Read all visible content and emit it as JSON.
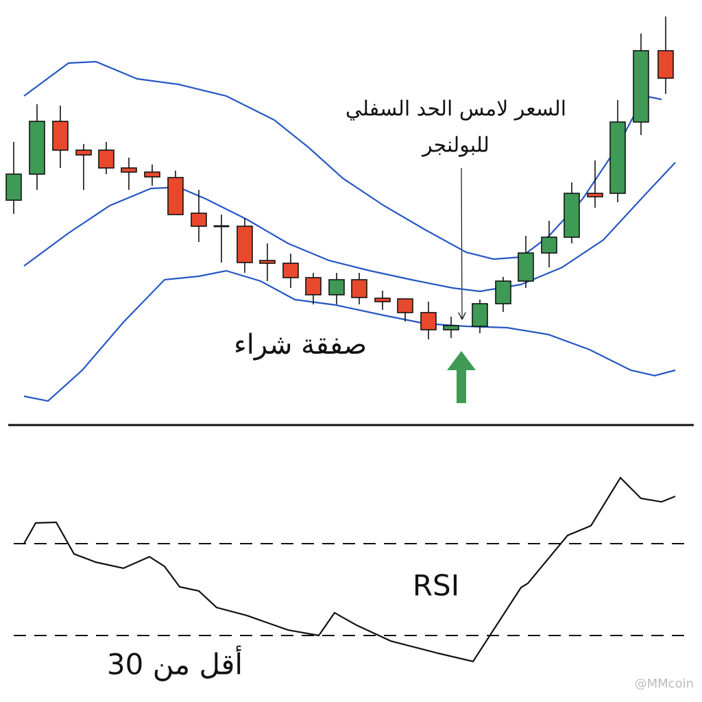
{
  "chart_data": [
    {
      "type": "candlestick",
      "annotation": [
        "السعر لامس الحد السفلي",
        "للبولنجر"
      ],
      "signal": "صفقة شراء",
      "up_color": "#3e9a55",
      "down_color": "#e8492d",
      "flat_color": "#111111",
      "band_color": "#2556c4",
      "xlim": [
        0,
        1024
      ],
      "ylim": [
        0,
        580
      ],
      "x": [
        20,
        54,
        88,
        122,
        155,
        188,
        222,
        256,
        290,
        323,
        357,
        390,
        424,
        457,
        491,
        524,
        558,
        591,
        625,
        658,
        700,
        734,
        767,
        801,
        834,
        868,
        901,
        935,
        971
      ],
      "open": [
        308,
        346,
        423,
        381,
        381,
        355,
        349,
        341,
        289,
        270,
        270,
        220,
        216,
        195,
        170,
        192,
        165,
        164,
        144,
        119,
        124,
        157,
        190,
        231,
        254,
        318,
        318,
        422,
        526
      ],
      "high": [
        393,
        448,
        446,
        390,
        393,
        370,
        360,
        351,
        323,
        287,
        282,
        245,
        230,
        202,
        202,
        202,
        176,
        164,
        160,
        138,
        163,
        196,
        256,
        278,
        334,
        366,
        454,
        551,
        576
      ],
      "low": [
        288,
        323,
        355,
        323,
        346,
        323,
        329,
        287,
        247,
        217,
        202,
        190,
        180,
        156,
        156,
        156,
        148,
        131,
        105,
        107,
        114,
        145,
        180,
        210,
        245,
        297,
        305,
        403,
        463
      ],
      "close": [
        346,
        423,
        381,
        374,
        355,
        349,
        342,
        287,
        270,
        270,
        217,
        216,
        195,
        170,
        192,
        166,
        160,
        144,
        119,
        125,
        157,
        190,
        231,
        254,
        318,
        313,
        422,
        526,
        486
      ],
      "bands": [
        {
          "name": "upper",
          "x": [
            35,
            100,
            140,
            200,
            260,
            330,
            400,
            450,
            500,
            560,
            620,
            680,
            720,
            760,
            800,
            850,
            900,
            940,
            965
          ],
          "values": [
            460,
            508,
            510,
            485,
            477,
            460,
            425,
            385,
            340,
            300,
            265,
            232,
            222,
            225,
            255,
            310,
            385,
            460,
            455
          ]
        },
        {
          "name": "middle",
          "x": [
            35,
            100,
            160,
            220,
            260,
            300,
            360,
            420,
            480,
            540,
            600,
            660,
            700,
            760,
            820,
            880,
            940,
            985
          ],
          "values": [
            212,
            260,
            300,
            325,
            327,
            310,
            280,
            245,
            220,
            205,
            192,
            180,
            175,
            185,
            210,
            250,
            315,
            363
          ]
        },
        {
          "name": "lower",
          "x": [
            35,
            70,
            120,
            180,
            240,
            290,
            330,
            380,
            430,
            490,
            560,
            620,
            680,
            740,
            800,
            860,
            920,
            955,
            985
          ],
          "values": [
            22,
            15,
            60,
            130,
            192,
            197,
            205,
            190,
            163,
            155,
            140,
            128,
            124,
            122,
            112,
            90,
            60,
            52,
            60
          ]
        }
      ]
    },
    {
      "type": "line",
      "title": "RSI",
      "note": "أقل من 30",
      "watermark": "@MMcoin",
      "color": "#111111",
      "xlim": [
        0,
        1024
      ],
      "ylim": [
        0,
        100
      ],
      "levels": [
        70,
        30
      ],
      "x": [
        35,
        52,
        82,
        108,
        140,
        180,
        218,
        240,
        262,
        290,
        316,
        360,
        420,
        465,
        488,
        520,
        570,
        640,
        690,
        760,
        770,
        828,
        862,
        905,
        935,
        965,
        985
      ],
      "values": [
        70,
        79,
        79.3,
        65.5,
        61.9,
        59.3,
        64.3,
        60.1,
        51.2,
        49.4,
        42.2,
        38.7,
        32.4,
        30,
        39.9,
        34.5,
        27.6,
        22.2,
        18.7,
        50.9,
        52.7,
        73.6,
        77.8,
        98.7,
        89.7,
        88.2,
        90.6
      ]
    }
  ]
}
